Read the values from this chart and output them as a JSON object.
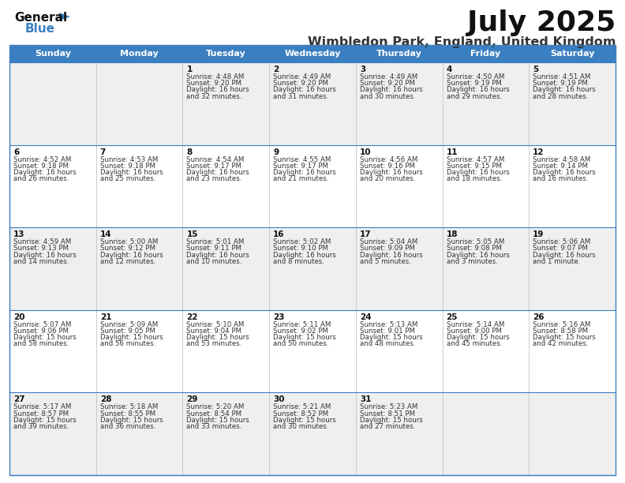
{
  "title": "July 2025",
  "subtitle": "Wimbledon Park, England, United Kingdom",
  "days_header": [
    "Sunday",
    "Monday",
    "Tuesday",
    "Wednesday",
    "Thursday",
    "Friday",
    "Saturday"
  ],
  "header_bg": "#3A7FC1",
  "header_text": "#FFFFFF",
  "row_bg_odd": "#EFEFEF",
  "row_bg_even": "#FFFFFF",
  "border_color": "#3A7FC1",
  "text_color": "#333333",
  "logo_general_color": "#1A1A1A",
  "logo_blue_color": "#3A7FC1",
  "cal_data": [
    [
      {
        "day": "",
        "info": ""
      },
      {
        "day": "",
        "info": ""
      },
      {
        "day": "1",
        "info": "Sunrise: 4:48 AM\nSunset: 9:20 PM\nDaylight: 16 hours\nand 32 minutes."
      },
      {
        "day": "2",
        "info": "Sunrise: 4:49 AM\nSunset: 9:20 PM\nDaylight: 16 hours\nand 31 minutes."
      },
      {
        "day": "3",
        "info": "Sunrise: 4:49 AM\nSunset: 9:20 PM\nDaylight: 16 hours\nand 30 minutes."
      },
      {
        "day": "4",
        "info": "Sunrise: 4:50 AM\nSunset: 9:19 PM\nDaylight: 16 hours\nand 29 minutes."
      },
      {
        "day": "5",
        "info": "Sunrise: 4:51 AM\nSunset: 9:19 PM\nDaylight: 16 hours\nand 28 minutes."
      }
    ],
    [
      {
        "day": "6",
        "info": "Sunrise: 4:52 AM\nSunset: 9:18 PM\nDaylight: 16 hours\nand 26 minutes."
      },
      {
        "day": "7",
        "info": "Sunrise: 4:53 AM\nSunset: 9:18 PM\nDaylight: 16 hours\nand 25 minutes."
      },
      {
        "day": "8",
        "info": "Sunrise: 4:54 AM\nSunset: 9:17 PM\nDaylight: 16 hours\nand 23 minutes."
      },
      {
        "day": "9",
        "info": "Sunrise: 4:55 AM\nSunset: 9:17 PM\nDaylight: 16 hours\nand 21 minutes."
      },
      {
        "day": "10",
        "info": "Sunrise: 4:56 AM\nSunset: 9:16 PM\nDaylight: 16 hours\nand 20 minutes."
      },
      {
        "day": "11",
        "info": "Sunrise: 4:57 AM\nSunset: 9:15 PM\nDaylight: 16 hours\nand 18 minutes."
      },
      {
        "day": "12",
        "info": "Sunrise: 4:58 AM\nSunset: 9:14 PM\nDaylight: 16 hours\nand 16 minutes."
      }
    ],
    [
      {
        "day": "13",
        "info": "Sunrise: 4:59 AM\nSunset: 9:13 PM\nDaylight: 16 hours\nand 14 minutes."
      },
      {
        "day": "14",
        "info": "Sunrise: 5:00 AM\nSunset: 9:12 PM\nDaylight: 16 hours\nand 12 minutes."
      },
      {
        "day": "15",
        "info": "Sunrise: 5:01 AM\nSunset: 9:11 PM\nDaylight: 16 hours\nand 10 minutes."
      },
      {
        "day": "16",
        "info": "Sunrise: 5:02 AM\nSunset: 9:10 PM\nDaylight: 16 hours\nand 8 minutes."
      },
      {
        "day": "17",
        "info": "Sunrise: 5:04 AM\nSunset: 9:09 PM\nDaylight: 16 hours\nand 5 minutes."
      },
      {
        "day": "18",
        "info": "Sunrise: 5:05 AM\nSunset: 9:08 PM\nDaylight: 16 hours\nand 3 minutes."
      },
      {
        "day": "19",
        "info": "Sunrise: 5:06 AM\nSunset: 9:07 PM\nDaylight: 16 hours\nand 1 minute."
      }
    ],
    [
      {
        "day": "20",
        "info": "Sunrise: 5:07 AM\nSunset: 9:06 PM\nDaylight: 15 hours\nand 58 minutes."
      },
      {
        "day": "21",
        "info": "Sunrise: 5:09 AM\nSunset: 9:05 PM\nDaylight: 15 hours\nand 56 minutes."
      },
      {
        "day": "22",
        "info": "Sunrise: 5:10 AM\nSunset: 9:04 PM\nDaylight: 15 hours\nand 53 minutes."
      },
      {
        "day": "23",
        "info": "Sunrise: 5:11 AM\nSunset: 9:02 PM\nDaylight: 15 hours\nand 50 minutes."
      },
      {
        "day": "24",
        "info": "Sunrise: 5:13 AM\nSunset: 9:01 PM\nDaylight: 15 hours\nand 48 minutes."
      },
      {
        "day": "25",
        "info": "Sunrise: 5:14 AM\nSunset: 9:00 PM\nDaylight: 15 hours\nand 45 minutes."
      },
      {
        "day": "26",
        "info": "Sunrise: 5:16 AM\nSunset: 8:58 PM\nDaylight: 15 hours\nand 42 minutes."
      }
    ],
    [
      {
        "day": "27",
        "info": "Sunrise: 5:17 AM\nSunset: 8:57 PM\nDaylight: 15 hours\nand 39 minutes."
      },
      {
        "day": "28",
        "info": "Sunrise: 5:18 AM\nSunset: 8:55 PM\nDaylight: 15 hours\nand 36 minutes."
      },
      {
        "day": "29",
        "info": "Sunrise: 5:20 AM\nSunset: 8:54 PM\nDaylight: 15 hours\nand 33 minutes."
      },
      {
        "day": "30",
        "info": "Sunrise: 5:21 AM\nSunset: 8:52 PM\nDaylight: 15 hours\nand 30 minutes."
      },
      {
        "day": "31",
        "info": "Sunrise: 5:23 AM\nSunset: 8:51 PM\nDaylight: 15 hours\nand 27 minutes."
      },
      {
        "day": "",
        "info": ""
      },
      {
        "day": "",
        "info": ""
      }
    ]
  ]
}
